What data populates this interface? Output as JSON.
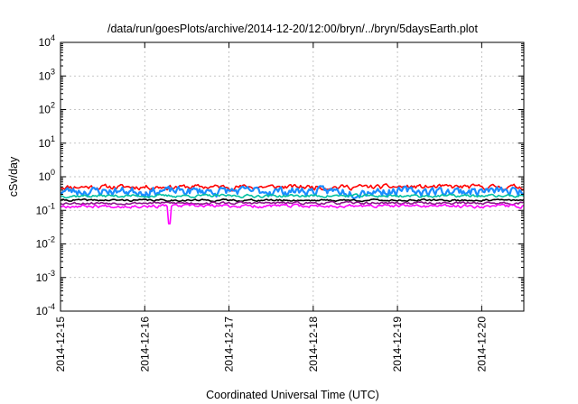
{
  "chart_data": {
    "type": "line",
    "title": "/data/run/goesPlots/archive/2014-12-20/12:00/bryn/../bryn/5daysEarth.plot",
    "xlabel": "Coordinated Universal Time (UTC)",
    "ylabel": "cSv/day",
    "yscale": "log",
    "ylim": [
      0.0001,
      10000
    ],
    "xlim": [
      "2014-12-15T00:00",
      "2014-12-20T12:00"
    ],
    "grid": true,
    "y_ticks": [
      {
        "base": "10",
        "exp": "-4",
        "value": 0.0001
      },
      {
        "base": "10",
        "exp": "-3",
        "value": 0.001
      },
      {
        "base": "10",
        "exp": "-2",
        "value": 0.01
      },
      {
        "base": "10",
        "exp": "-1",
        "value": 0.1
      },
      {
        "base": "10",
        "exp": "0",
        "value": 1
      },
      {
        "base": "10",
        "exp": "1",
        "value": 10
      },
      {
        "base": "10",
        "exp": "2",
        "value": 100
      },
      {
        "base": "10",
        "exp": "3",
        "value": 1000
      },
      {
        "base": "10",
        "exp": "4",
        "value": 10000
      }
    ],
    "x_ticks": [
      "2014-12-15",
      "2014-12-16",
      "2014-12-17",
      "2014-12-18",
      "2014-12-19",
      "2014-12-20"
    ],
    "series": [
      {
        "color": "#ff0000",
        "level": 0.5,
        "jitter": 0.3,
        "seed": 11
      },
      {
        "color": "#1a8cff",
        "level": 0.38,
        "jitter": 0.55,
        "seed": 23
      },
      {
        "color": "#00c0a0",
        "level": 0.27,
        "jitter": 0.18,
        "seed": 37
      },
      {
        "color": "#000000",
        "level": 0.2,
        "jitter": 0.12,
        "seed": 41
      },
      {
        "color": "#8a1a8a",
        "level": 0.165,
        "jitter": 0.15,
        "seed": 53
      },
      {
        "color": "#ff00ff",
        "level": 0.135,
        "jitter": 0.2,
        "seed": 67,
        "dip": {
          "x": "2014-12-16T07:00",
          "value": 0.04
        }
      }
    ]
  }
}
